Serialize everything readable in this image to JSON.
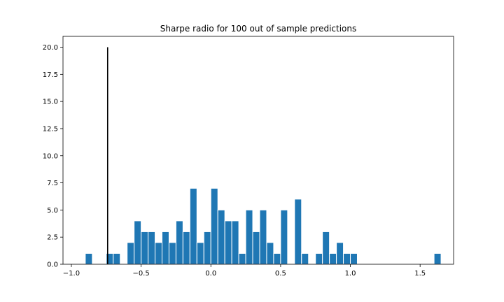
{
  "chart_data": {
    "type": "bar",
    "title": "Sharpe radio for 100 out of sample predictions",
    "xlabel": "",
    "ylabel": "",
    "xlim": [
      -1.06,
      1.74
    ],
    "ylim": [
      0,
      21
    ],
    "grid": false,
    "bar_color": "#1f77b4",
    "bar_edge_color": "#ffffff",
    "bin_width": 0.05,
    "x_ticks": [
      -1.0,
      -0.5,
      0.0,
      0.5,
      1.0,
      1.5
    ],
    "x_tick_labels": [
      "−1.0",
      "−0.5",
      "0.0",
      "0.5",
      "1.0",
      "1.5"
    ],
    "y_ticks": [
      0,
      2.5,
      5,
      7.5,
      10,
      12.5,
      15,
      17.5,
      20
    ],
    "y_tick_labels": [
      "0.0",
      "2.5",
      "5.0",
      "7.5",
      "10.0",
      "12.5",
      "15.0",
      "17.5",
      "20.0"
    ],
    "bins": [
      {
        "x": -0.9,
        "value": 1
      },
      {
        "x": -0.75,
        "value": 1
      },
      {
        "x": -0.7,
        "value": 1
      },
      {
        "x": -0.6,
        "value": 2
      },
      {
        "x": -0.55,
        "value": 4
      },
      {
        "x": -0.5,
        "value": 3
      },
      {
        "x": -0.45,
        "value": 3
      },
      {
        "x": -0.4,
        "value": 2
      },
      {
        "x": -0.35,
        "value": 3
      },
      {
        "x": -0.3,
        "value": 2
      },
      {
        "x": -0.25,
        "value": 4
      },
      {
        "x": -0.2,
        "value": 3
      },
      {
        "x": -0.15,
        "value": 7
      },
      {
        "x": -0.1,
        "value": 2
      },
      {
        "x": -0.05,
        "value": 3
      },
      {
        "x": 0.0,
        "value": 7
      },
      {
        "x": 0.05,
        "value": 5
      },
      {
        "x": 0.1,
        "value": 4
      },
      {
        "x": 0.15,
        "value": 4
      },
      {
        "x": 0.2,
        "value": 1
      },
      {
        "x": 0.25,
        "value": 5
      },
      {
        "x": 0.3,
        "value": 3
      },
      {
        "x": 0.35,
        "value": 5
      },
      {
        "x": 0.4,
        "value": 2
      },
      {
        "x": 0.45,
        "value": 1
      },
      {
        "x": 0.5,
        "value": 5
      },
      {
        "x": 0.6,
        "value": 6
      },
      {
        "x": 0.65,
        "value": 1
      },
      {
        "x": 0.75,
        "value": 1
      },
      {
        "x": 0.8,
        "value": 3
      },
      {
        "x": 0.85,
        "value": 1
      },
      {
        "x": 0.9,
        "value": 2
      },
      {
        "x": 0.95,
        "value": 1
      },
      {
        "x": 1.0,
        "value": 1
      },
      {
        "x": 1.6,
        "value": 1
      }
    ],
    "vline": {
      "x": -0.74,
      "ymin": 0,
      "ymax": 20,
      "color": "#000000"
    }
  }
}
